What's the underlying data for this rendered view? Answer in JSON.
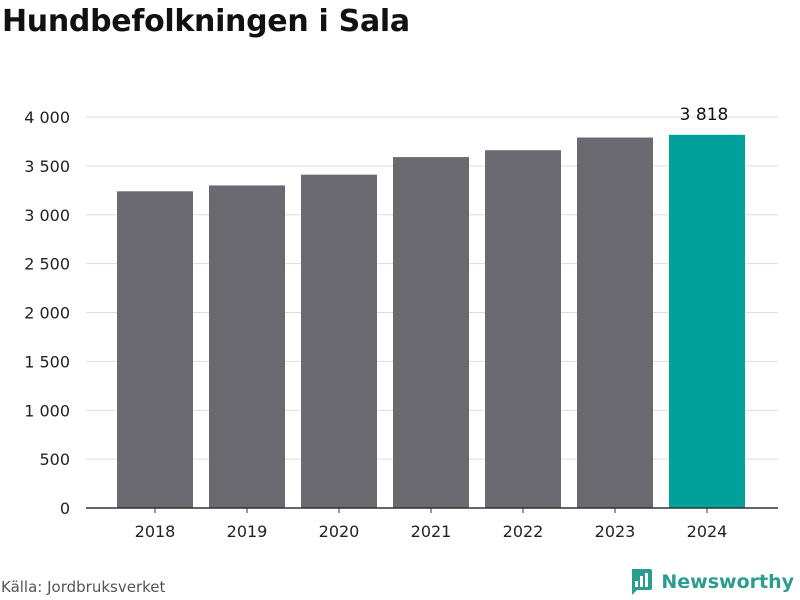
{
  "chart_data": {
    "type": "bar",
    "title": "Hundbefolkningen i Sala",
    "categories": [
      "2018",
      "2019",
      "2020",
      "2021",
      "2022",
      "2023",
      "2024"
    ],
    "values": [
      3240,
      3300,
      3410,
      3590,
      3660,
      3790,
      3818
    ],
    "ylim": [
      0,
      4000
    ],
    "yticks": [
      0,
      500,
      1000,
      1500,
      2000,
      2500,
      3000,
      3500,
      4000
    ],
    "ytick_labels": [
      "0",
      "500",
      "1 000",
      "1 500",
      "2 000",
      "2 500",
      "3 000",
      "3 500",
      "4 000"
    ],
    "xlabel": "",
    "ylabel": "",
    "grid": true,
    "data_labels": [
      {
        "category": "2024",
        "text": "3 818"
      }
    ],
    "highlight_category": "2024",
    "colors": {
      "bar": "#6b6a70",
      "highlight": "#00a19a",
      "grid": "#dedede",
      "axis": "#333333"
    }
  },
  "footer": {
    "source": "Källa: Jordbruksverket",
    "brand": "Newsworthy",
    "brand_icon": "bar-chart-logo-icon"
  }
}
